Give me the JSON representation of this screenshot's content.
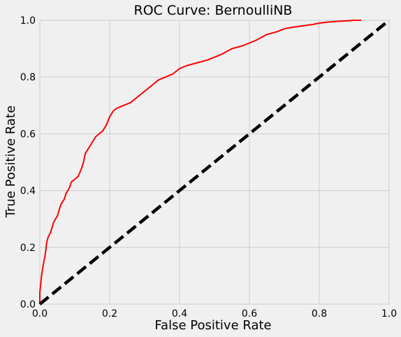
{
  "chart_data": {
    "type": "line",
    "title": "ROC Curve: BernoulliNB",
    "xlabel": "False Positive Rate",
    "ylabel": "True Positive Rate",
    "xlim": [
      0,
      1
    ],
    "ylim": [
      0,
      1
    ],
    "grid": true,
    "xticks": [
      "0.0",
      "0.2",
      "0.4",
      "0.6",
      "0.8",
      "1.0"
    ],
    "yticks": [
      "0.0",
      "0.2",
      "0.4",
      "0.6",
      "0.8",
      "1.0"
    ],
    "series": [
      {
        "color": "#ff0000",
        "style": "solid",
        "x": [
          0.0,
          0.0,
          0.005,
          0.01,
          0.015,
          0.02,
          0.025,
          0.03,
          0.035,
          0.04,
          0.045,
          0.05,
          0.06,
          0.07,
          0.075,
          0.08,
          0.085,
          0.09,
          0.1,
          0.11,
          0.12,
          0.125,
          0.13,
          0.14,
          0.15,
          0.16,
          0.17,
          0.18,
          0.19,
          0.2,
          0.21,
          0.22,
          0.24,
          0.26,
          0.28,
          0.3,
          0.32,
          0.34,
          0.36,
          0.38,
          0.4,
          0.42,
          0.45,
          0.48,
          0.5,
          0.52,
          0.55,
          0.58,
          0.6,
          0.62,
          0.65,
          0.68,
          0.7,
          0.72,
          0.75,
          0.78,
          0.8,
          0.82,
          0.85,
          0.88,
          0.9,
          0.92
        ],
        "y": [
          0.0,
          0.04,
          0.1,
          0.14,
          0.17,
          0.22,
          0.24,
          0.25,
          0.27,
          0.29,
          0.3,
          0.31,
          0.35,
          0.37,
          0.39,
          0.4,
          0.41,
          0.43,
          0.44,
          0.45,
          0.48,
          0.5,
          0.53,
          0.55,
          0.57,
          0.59,
          0.6,
          0.61,
          0.63,
          0.66,
          0.68,
          0.69,
          0.7,
          0.71,
          0.73,
          0.75,
          0.77,
          0.79,
          0.8,
          0.81,
          0.83,
          0.84,
          0.85,
          0.86,
          0.87,
          0.88,
          0.9,
          0.91,
          0.92,
          0.93,
          0.95,
          0.96,
          0.97,
          0.975,
          0.98,
          0.985,
          0.99,
          0.993,
          0.996,
          0.998,
          1.0,
          1.0
        ]
      },
      {
        "color": "#000000",
        "style": "dashed",
        "x": [
          0,
          1
        ],
        "y": [
          0,
          1
        ]
      }
    ]
  }
}
